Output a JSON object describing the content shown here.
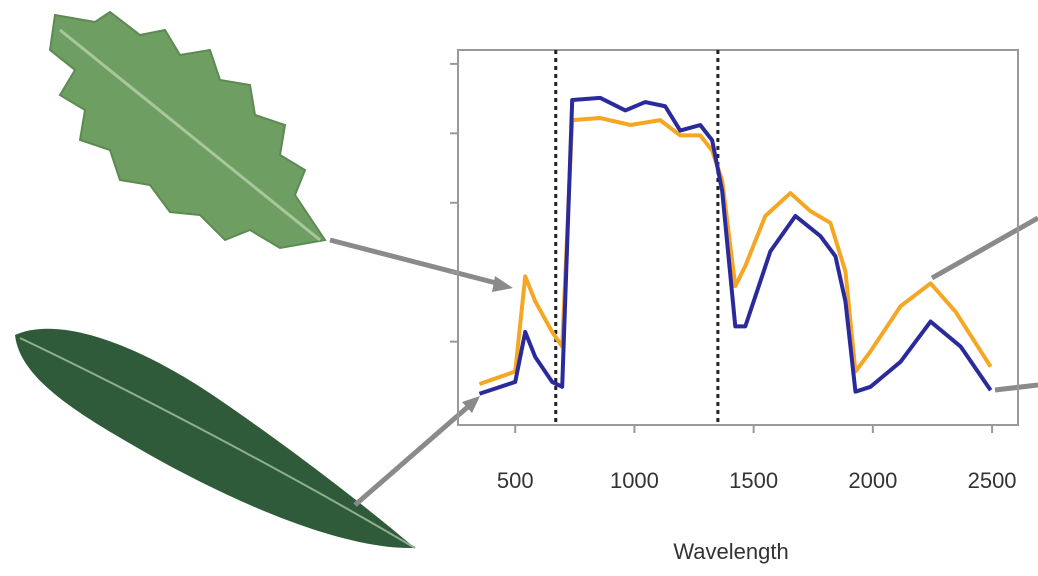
{
  "chart_data": {
    "type": "line",
    "x_label": "Wavelength",
    "xlim": [
      260,
      2550
    ],
    "xticks": [
      500,
      1000,
      1500,
      2000,
      2500
    ],
    "ylim": [
      -0.2,
      5.2
    ],
    "yticks": [
      1,
      2,
      3,
      4,
      5
    ],
    "vlines": [
      670,
      1350
    ],
    "series": [
      {
        "color": "#f5a623",
        "x": [
          350,
          500,
          542,
          584,
          655,
          697,
          739,
          857,
          983,
          1108,
          1192,
          1276,
          1326,
          1368,
          1423,
          1465,
          1549,
          1654,
          1738,
          1822,
          1885,
          1927,
          1990,
          2116,
          2242,
          2347,
          2494
        ],
        "values": [
          0.39,
          0.57,
          1.94,
          1.58,
          1.14,
          0.93,
          4.19,
          4.22,
          4.12,
          4.19,
          3.97,
          3.97,
          3.75,
          3.32,
          1.8,
          2.09,
          2.81,
          3.14,
          2.88,
          2.71,
          2.01,
          0.57,
          0.86,
          1.51,
          1.84,
          1.43,
          0.64
        ]
      },
      {
        "color": "#2a2a9c",
        "x": [
          350,
          500,
          542,
          584,
          655,
          697,
          739,
          857,
          962,
          1045,
          1129,
          1192,
          1276,
          1326,
          1368,
          1423,
          1465,
          1570,
          1675,
          1780,
          1843,
          1885,
          1927,
          1990,
          2116,
          2242,
          2368,
          2494
        ],
        "values": [
          0.25,
          0.42,
          1.14,
          0.78,
          0.42,
          0.35,
          4.48,
          4.51,
          4.33,
          4.45,
          4.39,
          4.04,
          4.12,
          3.9,
          3.17,
          1.22,
          1.22,
          2.3,
          2.81,
          2.52,
          2.23,
          1.58,
          0.28,
          0.35,
          0.71,
          1.29,
          0.93,
          0.3
        ]
      }
    ]
  }
}
